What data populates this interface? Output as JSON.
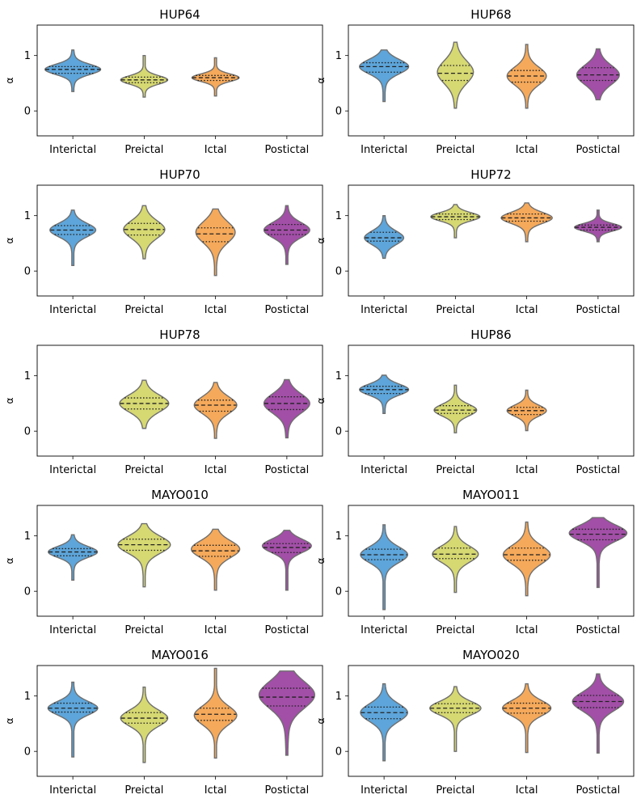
{
  "chart_data": {
    "type": "violin",
    "ylabel": "α",
    "ylim": [
      -0.45,
      1.55
    ],
    "yticks": [
      0,
      1
    ],
    "categories": [
      "Interictal",
      "Preictal",
      "Ictal",
      "Postictal"
    ],
    "colors": {
      "Interictal": "#5DA5DA",
      "Preictal": "#D6D872",
      "Ictal": "#F5A95A",
      "Postictal": "#A24FA7",
      "outline": "#6f6f6f"
    },
    "panels": [
      {
        "title": "HUP64",
        "groups": [
          {
            "category": "Interictal",
            "min": 0.35,
            "max": 1.1,
            "q1": 0.68,
            "median": 0.75,
            "q3": 0.8,
            "mode": 0.75,
            "peak_width": 0.85
          },
          {
            "category": "Preictal",
            "min": 0.25,
            "max": 1.0,
            "q1": 0.51,
            "median": 0.56,
            "q3": 0.61,
            "mode": 0.56,
            "peak_width": 0.72
          },
          {
            "category": "Ictal",
            "min": 0.27,
            "max": 0.96,
            "q1": 0.55,
            "median": 0.6,
            "q3": 0.64,
            "mode": 0.6,
            "peak_width": 0.72
          },
          {
            "category": "Postictal",
            "empty": true
          }
        ]
      },
      {
        "title": "HUP68",
        "groups": [
          {
            "category": "Interictal",
            "min": 0.17,
            "max": 1.1,
            "q1": 0.7,
            "median": 0.8,
            "q3": 0.87,
            "mode": 0.8,
            "peak_width": 0.75
          },
          {
            "category": "Preictal",
            "min": 0.05,
            "max": 1.24,
            "q1": 0.55,
            "median": 0.68,
            "q3": 0.82,
            "mode": 0.7,
            "peak_width": 0.55
          },
          {
            "category": "Ictal",
            "min": 0.05,
            "max": 1.2,
            "q1": 0.52,
            "median": 0.63,
            "q3": 0.73,
            "mode": 0.63,
            "peak_width": 0.6
          },
          {
            "category": "Postictal",
            "min": 0.2,
            "max": 1.12,
            "q1": 0.55,
            "median": 0.65,
            "q3": 0.78,
            "mode": 0.65,
            "peak_width": 0.65
          }
        ]
      },
      {
        "title": "HUP70",
        "groups": [
          {
            "category": "Interictal",
            "min": 0.1,
            "max": 1.1,
            "q1": 0.66,
            "median": 0.74,
            "q3": 0.82,
            "mode": 0.74,
            "peak_width": 0.7
          },
          {
            "category": "Preictal",
            "min": 0.22,
            "max": 1.18,
            "q1": 0.65,
            "median": 0.75,
            "q3": 0.86,
            "mode": 0.75,
            "peak_width": 0.63
          },
          {
            "category": "Ictal",
            "min": -0.08,
            "max": 1.12,
            "q1": 0.53,
            "median": 0.67,
            "q3": 0.78,
            "mode": 0.7,
            "peak_width": 0.6
          },
          {
            "category": "Postictal",
            "min": 0.12,
            "max": 1.18,
            "q1": 0.66,
            "median": 0.74,
            "q3": 0.84,
            "mode": 0.74,
            "peak_width": 0.7
          }
        ]
      },
      {
        "title": "HUP72",
        "groups": [
          {
            "category": "Interictal",
            "min": 0.23,
            "max": 1.0,
            "q1": 0.54,
            "median": 0.6,
            "q3": 0.7,
            "mode": 0.6,
            "peak_width": 0.6
          },
          {
            "category": "Preictal",
            "min": 0.6,
            "max": 1.2,
            "q1": 0.93,
            "median": 0.98,
            "q3": 1.03,
            "mode": 0.98,
            "peak_width": 0.75
          },
          {
            "category": "Ictal",
            "min": 0.53,
            "max": 1.23,
            "q1": 0.9,
            "median": 0.96,
            "q3": 1.03,
            "mode": 0.96,
            "peak_width": 0.78
          },
          {
            "category": "Postictal",
            "min": 0.53,
            "max": 1.1,
            "q1": 0.74,
            "median": 0.79,
            "q3": 0.83,
            "mode": 0.79,
            "peak_width": 0.72
          }
        ]
      },
      {
        "title": "HUP78",
        "groups": [
          {
            "category": "Interictal",
            "empty": true
          },
          {
            "category": "Preictal",
            "min": 0.05,
            "max": 0.92,
            "q1": 0.4,
            "median": 0.5,
            "q3": 0.6,
            "mode": 0.5,
            "peak_width": 0.75
          },
          {
            "category": "Ictal",
            "min": -0.13,
            "max": 0.88,
            "q1": 0.36,
            "median": 0.47,
            "q3": 0.56,
            "mode": 0.47,
            "peak_width": 0.65
          },
          {
            "category": "Postictal",
            "min": -0.12,
            "max": 0.93,
            "q1": 0.39,
            "median": 0.5,
            "q3": 0.62,
            "mode": 0.5,
            "peak_width": 0.7
          }
        ]
      },
      {
        "title": "HUP86",
        "groups": [
          {
            "category": "Interictal",
            "min": 0.32,
            "max": 1.01,
            "q1": 0.68,
            "median": 0.75,
            "q3": 0.81,
            "mode": 0.75,
            "peak_width": 0.75
          },
          {
            "category": "Preictal",
            "min": -0.03,
            "max": 0.83,
            "q1": 0.32,
            "median": 0.38,
            "q3": 0.46,
            "mode": 0.38,
            "peak_width": 0.65
          },
          {
            "category": "Ictal",
            "min": 0.01,
            "max": 0.74,
            "q1": 0.3,
            "median": 0.37,
            "q3": 0.43,
            "mode": 0.37,
            "peak_width": 0.6
          },
          {
            "category": "Postictal",
            "empty": true
          }
        ]
      },
      {
        "title": "MAYO010",
        "groups": [
          {
            "category": "Interictal",
            "min": 0.2,
            "max": 1.02,
            "q1": 0.64,
            "median": 0.71,
            "q3": 0.77,
            "mode": 0.71,
            "peak_width": 0.75
          },
          {
            "category": "Preictal",
            "min": 0.08,
            "max": 1.22,
            "q1": 0.74,
            "median": 0.84,
            "q3": 0.94,
            "mode": 0.84,
            "peak_width": 0.8
          },
          {
            "category": "Ictal",
            "min": 0.02,
            "max": 1.12,
            "q1": 0.63,
            "median": 0.73,
            "q3": 0.83,
            "mode": 0.76,
            "peak_width": 0.74
          },
          {
            "category": "Postictal",
            "min": 0.02,
            "max": 1.1,
            "q1": 0.7,
            "median": 0.79,
            "q3": 0.86,
            "mode": 0.82,
            "peak_width": 0.75
          }
        ]
      },
      {
        "title": "MAYO011",
        "groups": [
          {
            "category": "Interictal",
            "min": -0.33,
            "max": 1.2,
            "q1": 0.57,
            "median": 0.66,
            "q3": 0.76,
            "mode": 0.66,
            "peak_width": 0.72
          },
          {
            "category": "Preictal",
            "min": -0.02,
            "max": 1.17,
            "q1": 0.59,
            "median": 0.67,
            "q3": 0.78,
            "mode": 0.67,
            "peak_width": 0.7
          },
          {
            "category": "Ictal",
            "min": -0.08,
            "max": 1.25,
            "q1": 0.56,
            "median": 0.66,
            "q3": 0.78,
            "mode": 0.66,
            "peak_width": 0.72
          },
          {
            "category": "Postictal",
            "min": 0.07,
            "max": 1.33,
            "q1": 0.93,
            "median": 1.03,
            "q3": 1.12,
            "mode": 1.05,
            "peak_width": 0.88
          }
        ]
      },
      {
        "title": "MAYO016",
        "groups": [
          {
            "category": "Interictal",
            "min": -0.1,
            "max": 1.25,
            "q1": 0.71,
            "median": 0.78,
            "q3": 0.87,
            "mode": 0.78,
            "peak_width": 0.76
          },
          {
            "category": "Preictal",
            "min": -0.2,
            "max": 1.16,
            "q1": 0.51,
            "median": 0.6,
            "q3": 0.7,
            "mode": 0.6,
            "peak_width": 0.72
          },
          {
            "category": "Ictal",
            "min": -0.12,
            "max": 1.5,
            "q1": 0.56,
            "median": 0.67,
            "q3": 0.78,
            "mode": 0.65,
            "peak_width": 0.65
          },
          {
            "category": "Postictal",
            "min": -0.07,
            "max": 1.45,
            "q1": 0.82,
            "median": 0.98,
            "q3": 1.14,
            "mode": 1.02,
            "peak_width": 0.85
          }
        ]
      },
      {
        "title": "MAYO020",
        "groups": [
          {
            "category": "Interictal",
            "min": -0.17,
            "max": 1.22,
            "q1": 0.59,
            "median": 0.7,
            "q3": 0.8,
            "mode": 0.7,
            "peak_width": 0.72
          },
          {
            "category": "Preictal",
            "min": 0.0,
            "max": 1.17,
            "q1": 0.7,
            "median": 0.78,
            "q3": 0.86,
            "mode": 0.78,
            "peak_width": 0.78
          },
          {
            "category": "Ictal",
            "min": -0.02,
            "max": 1.22,
            "q1": 0.69,
            "median": 0.78,
            "q3": 0.87,
            "mode": 0.78,
            "peak_width": 0.74
          },
          {
            "category": "Postictal",
            "min": -0.03,
            "max": 1.4,
            "q1": 0.79,
            "median": 0.9,
            "q3": 1.01,
            "mode": 0.9,
            "peak_width": 0.78
          }
        ]
      }
    ]
  }
}
